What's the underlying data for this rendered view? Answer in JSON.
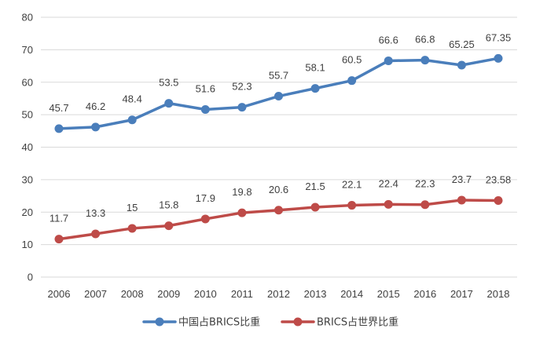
{
  "chart_data": {
    "type": "line",
    "title": "",
    "xlabel": "",
    "ylabel": "",
    "categories": [
      "2006",
      "2007",
      "2008",
      "2009",
      "2010",
      "2011",
      "2012",
      "2013",
      "2014",
      "2015",
      "2016",
      "2017",
      "2018"
    ],
    "ylim": [
      0,
      80
    ],
    "yticks": [
      0,
      10,
      20,
      30,
      40,
      50,
      60,
      70,
      80
    ],
    "grid": true,
    "legend_position": "bottom",
    "series": [
      {
        "name": "中国占BRICS比重",
        "color": "#4a7ebb",
        "values": [
          45.7,
          46.2,
          48.4,
          53.5,
          51.6,
          52.3,
          55.7,
          58.1,
          60.5,
          66.6,
          66.8,
          65.25,
          67.35
        ],
        "labels": [
          "45.7",
          "46.2",
          "48.4",
          "53.5",
          "51.6",
          "52.3",
          "55.7",
          "58.1",
          "60.5",
          "66.6",
          "66.8",
          "65.25",
          "67.35"
        ]
      },
      {
        "name": "BRICS占世界比重",
        "color": "#be4b48",
        "values": [
          11.7,
          13.3,
          15,
          15.8,
          17.9,
          19.8,
          20.6,
          21.5,
          22.1,
          22.4,
          22.3,
          23.7,
          23.58
        ],
        "labels": [
          "11.7",
          "13.3",
          "15",
          "15.8",
          "17.9",
          "19.8",
          "20.6",
          "21.5",
          "22.1",
          "22.4",
          "22.3",
          "23.7",
          "23.58"
        ]
      }
    ]
  }
}
